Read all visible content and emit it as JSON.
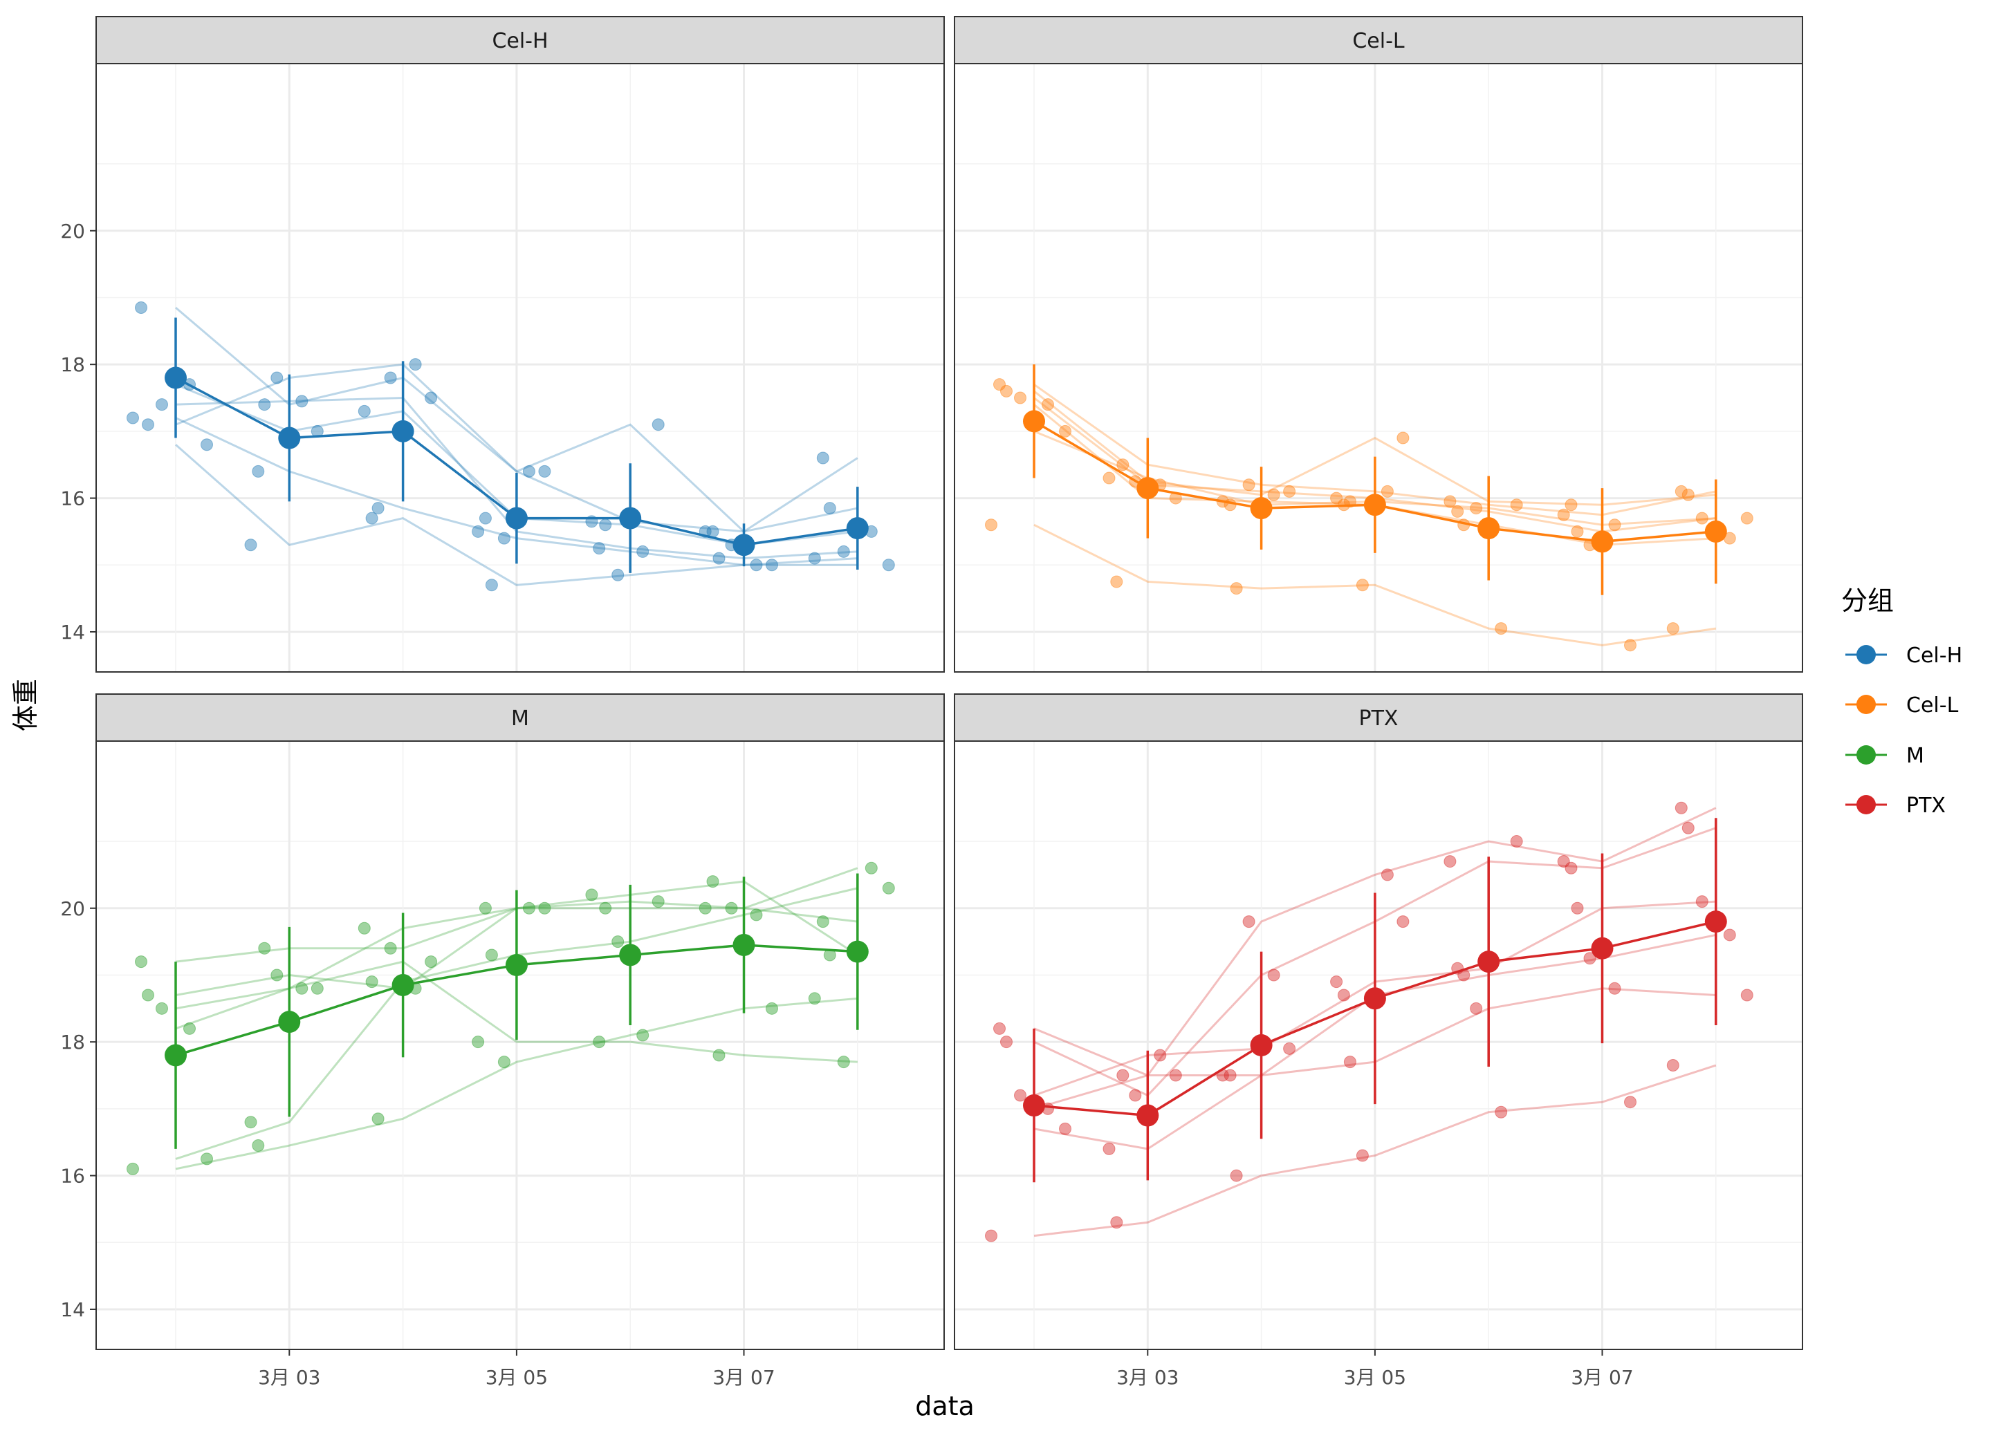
{
  "chart_data": {
    "type": "line",
    "xlabel": "data",
    "ylabel": "体重",
    "x_dates": [
      "3月 02",
      "3月 03",
      "3月 04",
      "3月 05",
      "3月 06",
      "3月 07",
      "3月 08"
    ],
    "x_tick_labels": [
      "3月 03",
      "3月 05",
      "3月 07"
    ],
    "x_tick_index": [
      1,
      3,
      5
    ],
    "ylim": [
      13.4,
      22.5
    ],
    "y_ticks": [
      14,
      16,
      18,
      20
    ],
    "y_tick_labels": [
      "14",
      "16",
      "18",
      "20"
    ],
    "grid": true,
    "legend": {
      "title": "分组",
      "placement": "right",
      "items": [
        {
          "label": "Cel-H",
          "color": "#1f77b4"
        },
        {
          "label": "Cel-L",
          "color": "#ff7f0e"
        },
        {
          "label": "M",
          "color": "#2ca02c"
        },
        {
          "label": "PTX",
          "color": "#d62728"
        }
      ]
    },
    "panels": [
      {
        "name": "Cel-H",
        "color": "#1f77b4",
        "individuals": [
          [
            18.85,
            17.4,
            17.8,
            16.4,
            17.1,
            15.5,
            16.6
          ],
          [
            17.1,
            17.8,
            18.0,
            16.4,
            15.65,
            15.5,
            15.85
          ],
          [
            17.4,
            17.45,
            17.5,
            15.5,
            15.25,
            15.1,
            15.2
          ],
          [
            17.7,
            17.0,
            17.3,
            15.7,
            15.6,
            15.3,
            15.5
          ],
          [
            16.8,
            15.3,
            15.7,
            14.7,
            14.85,
            15.0,
            15.0
          ],
          [
            17.2,
            16.4,
            15.85,
            15.4,
            15.2,
            15.0,
            15.1
          ]
        ],
        "mean": [
          17.8,
          16.9,
          17.0,
          15.7,
          15.7,
          15.3,
          15.55
        ],
        "sd": [
          0.9,
          0.95,
          1.05,
          0.68,
          0.82,
          0.32,
          0.62
        ]
      },
      {
        "name": "Cel-L",
        "color": "#ff7f0e",
        "individuals": [
          [
            17.7,
            16.5,
            16.2,
            16.1,
            15.9,
            15.75,
            16.1
          ],
          [
            17.6,
            16.25,
            16.05,
            16.9,
            15.95,
            15.9,
            16.05
          ],
          [
            17.5,
            16.2,
            16.1,
            16.0,
            15.8,
            15.5,
            15.7
          ],
          [
            17.4,
            16.0,
            15.95,
            15.9,
            15.6,
            15.3,
            15.4
          ],
          [
            17.0,
            16.3,
            15.9,
            15.95,
            15.85,
            15.6,
            15.7
          ],
          [
            15.6,
            14.75,
            14.65,
            14.7,
            14.05,
            13.8,
            14.05
          ]
        ],
        "mean": [
          17.15,
          16.15,
          15.85,
          15.9,
          15.55,
          15.35,
          15.5
        ],
        "sd": [
          0.85,
          0.75,
          0.62,
          0.72,
          0.78,
          0.8,
          0.78
        ]
      },
      {
        "name": "M",
        "color": "#2ca02c",
        "individuals": [
          [
            19.2,
            19.4,
            19.4,
            20.0,
            20.1,
            20.0,
            19.8
          ],
          [
            18.7,
            19.0,
            18.8,
            20.0,
            20.2,
            20.4,
            19.3
          ],
          [
            18.5,
            18.8,
            19.2,
            18.0,
            18.0,
            17.8,
            17.7
          ],
          [
            18.2,
            18.8,
            19.7,
            20.0,
            20.0,
            20.0,
            20.6
          ],
          [
            16.25,
            16.8,
            18.9,
            19.3,
            19.5,
            19.9,
            20.3
          ],
          [
            16.1,
            16.45,
            16.85,
            17.7,
            18.1,
            18.5,
            18.65
          ]
        ],
        "mean": [
          17.8,
          18.3,
          18.85,
          19.15,
          19.3,
          19.45,
          19.35
        ],
        "sd": [
          1.4,
          1.42,
          1.08,
          1.12,
          1.05,
          1.02,
          1.17
        ]
      },
      {
        "name": "PTX",
        "color": "#d62728",
        "individuals": [
          [
            18.2,
            17.5,
            19.8,
            20.5,
            21.0,
            20.7,
            21.5
          ],
          [
            18.0,
            17.2,
            19.0,
            19.8,
            20.7,
            20.6,
            21.2
          ],
          [
            17.2,
            17.8,
            17.9,
            18.9,
            19.1,
            20.0,
            20.1
          ],
          [
            17.0,
            17.5,
            17.5,
            18.7,
            19.0,
            19.25,
            19.6
          ],
          [
            16.7,
            16.4,
            17.5,
            17.7,
            18.5,
            18.8,
            18.7
          ],
          [
            15.1,
            15.3,
            16.0,
            16.3,
            16.95,
            17.1,
            17.65
          ]
        ],
        "mean": [
          17.05,
          16.9,
          17.95,
          18.65,
          19.2,
          19.4,
          19.8
        ],
        "sd": [
          1.15,
          0.97,
          1.4,
          1.58,
          1.57,
          1.42,
          1.55
        ]
      }
    ]
  }
}
